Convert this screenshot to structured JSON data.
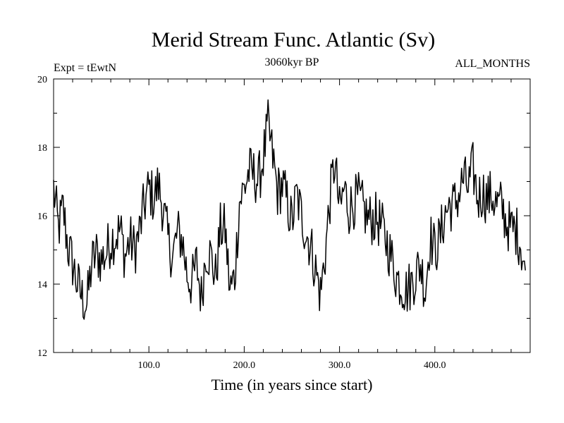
{
  "chart_data": {
    "type": "line",
    "title": "Merid Stream Func. Atlantic (Sv)",
    "subtitle_left": "Expt = tEwtN",
    "subtitle_center": "3060kyr BP",
    "subtitle_right": "ALL_MONTHS",
    "xlabel": "Time (in years since start)",
    "ylabel": "",
    "xlim": [
      0,
      500
    ],
    "ylim": [
      12,
      20
    ],
    "xticks": [
      100,
      200,
      300,
      400
    ],
    "xtick_labels": [
      "100.0",
      "200.0",
      "300.0",
      "400.0"
    ],
    "yticks": [
      12,
      14,
      16,
      18,
      20
    ],
    "ytick_labels": [
      "12",
      "14",
      "16",
      "18",
      "20"
    ],
    "grid": false,
    "series": [
      {
        "name": "Merid Stream Func. Atlantic",
        "x_step": 5,
        "x_start": 0,
        "values": [
          16.8,
          15.6,
          16.2,
          15.1,
          14.6,
          14.0,
          13.6,
          13.4,
          14.6,
          14.9,
          14.7,
          14.9,
          15.3,
          15.4,
          15.6,
          14.8,
          15.3,
          15.0,
          15.5,
          16.3,
          16.8,
          16.5,
          16.9,
          16.2,
          15.3,
          14.8,
          15.5,
          15.3,
          14.3,
          14.0,
          14.6,
          13.6,
          15.0,
          14.8,
          14.2,
          15.6,
          15.6,
          13.8,
          14.2,
          16.4,
          16.8,
          17.3,
          17.2,
          17.0,
          17.7,
          18.6,
          17.7,
          16.7,
          16.9,
          16.4,
          15.8,
          16.6,
          16.0,
          15.5,
          15.1,
          14.4,
          13.7,
          14.9,
          16.5,
          17.6,
          16.1,
          16.8,
          16.2,
          16.4,
          16.5,
          16.2,
          15.9,
          15.9,
          15.9,
          15.6,
          15.2,
          14.7,
          14.2,
          14.0,
          13.8,
          14.0,
          14.3,
          14.6,
          13.8,
          15.4,
          15.0,
          15.3,
          16.0,
          16.3,
          16.3,
          16.6,
          17.1,
          16.8,
          17.4,
          16.5,
          16.7,
          16.5,
          16.6,
          16.3,
          16.3,
          15.8,
          15.6,
          15.6,
          15.2,
          14.4
        ]
      }
    ]
  }
}
